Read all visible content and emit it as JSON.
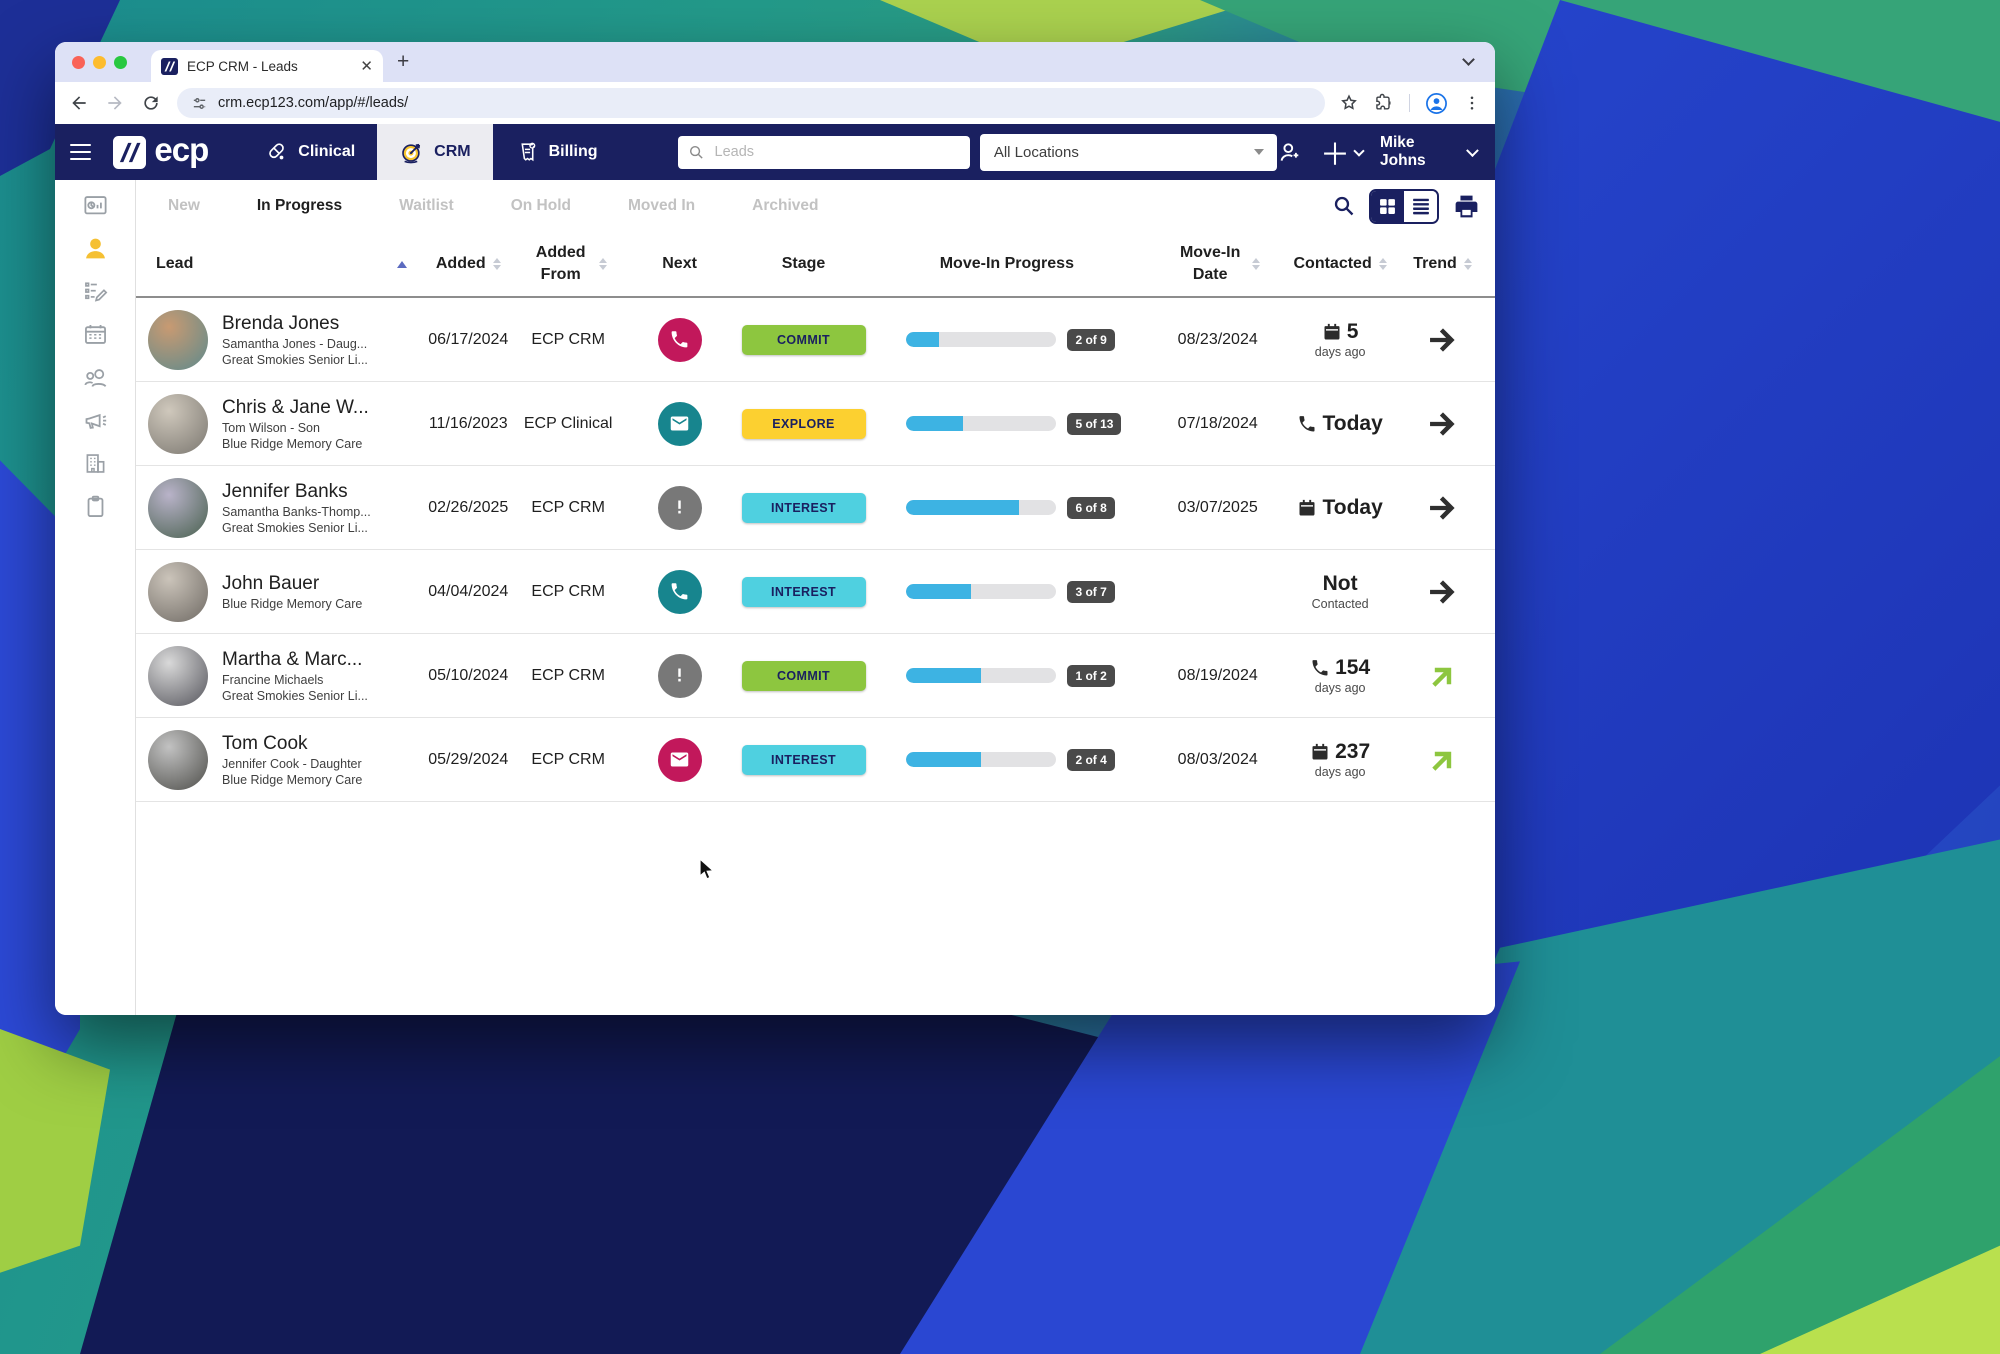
{
  "browser": {
    "tab_title": "ECP CRM - Leads",
    "url": "crm.ecp123.com/app/#/leads/"
  },
  "app_header": {
    "logo_text": "ecp",
    "nav": [
      {
        "label": "Clinical",
        "icon": "pill-icon",
        "active": false
      },
      {
        "label": "CRM",
        "icon": "target-icon",
        "active": true
      },
      {
        "label": "Billing",
        "icon": "billing-icon",
        "active": false
      }
    ],
    "search": {
      "placeholder": "Leads"
    },
    "location_filter": {
      "value": "All Locations"
    },
    "user_name": "Mike Johns"
  },
  "sidebar": {
    "items": [
      {
        "icon": "dashboard-icon",
        "active": false
      },
      {
        "icon": "leads-person-icon",
        "active": true
      },
      {
        "icon": "tasks-icon",
        "active": false
      },
      {
        "icon": "calendar-icon",
        "active": false
      },
      {
        "icon": "referrals-icon",
        "active": false
      },
      {
        "icon": "marketing-icon",
        "active": false
      },
      {
        "icon": "communities-icon",
        "active": false
      },
      {
        "icon": "clipboard-icon",
        "active": false
      }
    ]
  },
  "filter_tabs": [
    {
      "label": "New",
      "active": false
    },
    {
      "label": "In Progress",
      "active": true
    },
    {
      "label": "Waitlist",
      "active": false
    },
    {
      "label": "On Hold",
      "active": false
    },
    {
      "label": "Moved In",
      "active": false
    },
    {
      "label": "Archived",
      "active": false
    }
  ],
  "table": {
    "columns": [
      {
        "label": "Lead",
        "sort": "asc"
      },
      {
        "label": "Added",
        "sort": "both"
      },
      {
        "label": "Added From",
        "sort": "both"
      },
      {
        "label": "Next",
        "sort": "none"
      },
      {
        "label": "Stage",
        "sort": "none"
      },
      {
        "label": "Move-In Progress",
        "sort": "none"
      },
      {
        "label": "Move-In Date",
        "sort": "both"
      },
      {
        "label": "Contacted",
        "sort": "both"
      },
      {
        "label": "Trend",
        "sort": "both"
      }
    ],
    "rows": [
      {
        "name": "Brenda Jones",
        "contact": "Samantha Jones - Daug...",
        "community": "Great Smokies Senior Li...",
        "avatar": {
          "from": "#c89a72",
          "to": "#5e8a8c"
        },
        "added": "06/17/2024",
        "added_from": "ECP CRM",
        "next": {
          "icon": "phone-icon",
          "color": "#c2185b"
        },
        "stage": {
          "label": "COMMIT",
          "color": "#8dc63f"
        },
        "progress": {
          "label": "2 of 9",
          "percent": 22
        },
        "move_in_date": "08/23/2024",
        "contacted": {
          "icon": "calendar-small-icon",
          "value": "5",
          "sub": "days ago"
        },
        "trend": {
          "icon": "arrow-right-icon",
          "color": "#2f2f2f"
        }
      },
      {
        "name": "Chris & Jane W...",
        "contact": "Tom Wilson - Son",
        "community": "Blue Ridge Memory Care",
        "avatar": {
          "from": "#cfc8bc",
          "to": "#7b7770"
        },
        "added": "11/16/2023",
        "added_from": "ECP Clinical",
        "next": {
          "icon": "mail-icon",
          "color": "#17858e"
        },
        "stage": {
          "label": "EXPLORE",
          "color": "#fcd030"
        },
        "progress": {
          "label": "5 of 13",
          "percent": 38
        },
        "move_in_date": "07/18/2024",
        "contacted": {
          "icon": "phone-small-icon",
          "value": "Today",
          "sub": ""
        },
        "trend": {
          "icon": "arrow-right-icon",
          "color": "#2f2f2f"
        }
      },
      {
        "name": "Jennifer Banks",
        "contact": "Samantha Banks-Thomp...",
        "community": "Great Smokies Senior Li...",
        "avatar": {
          "from": "#b9b3c9",
          "to": "#48604e"
        },
        "added": "02/26/2025",
        "added_from": "ECP CRM",
        "next": {
          "icon": "alert-icon",
          "color": "#787878"
        },
        "stage": {
          "label": "INTEREST",
          "color": "#4fd0e0"
        },
        "progress": {
          "label": "6 of 8",
          "percent": 75
        },
        "move_in_date": "03/07/2025",
        "contacted": {
          "icon": "calendar-small-icon",
          "value": "Today",
          "sub": ""
        },
        "trend": {
          "icon": "arrow-right-icon",
          "color": "#2f2f2f"
        }
      },
      {
        "name": "John Bauer",
        "contact": null,
        "community": "Blue Ridge Memory Care",
        "avatar": {
          "from": "#cbc4ba",
          "to": "#6f6a64"
        },
        "added": "04/04/2024",
        "added_from": "ECP CRM",
        "next": {
          "icon": "phone-icon",
          "color": "#17858e"
        },
        "stage": {
          "label": "INTEREST",
          "color": "#4fd0e0"
        },
        "progress": {
          "label": "3 of 7",
          "percent": 43
        },
        "move_in_date": "",
        "contacted": {
          "icon": null,
          "value": "Not",
          "sub": "Contacted"
        },
        "trend": {
          "icon": "arrow-right-icon",
          "color": "#2f2f2f"
        }
      },
      {
        "name": "Martha & Marc...",
        "contact": "Francine Michaels",
        "community": "Great Smokies Senior Li...",
        "avatar": {
          "from": "#d9d9d9",
          "to": "#55555c"
        },
        "added": "05/10/2024",
        "added_from": "ECP CRM",
        "next": {
          "icon": "alert-icon",
          "color": "#787878"
        },
        "stage": {
          "label": "COMMIT",
          "color": "#8dc63f"
        },
        "progress": {
          "label": "1 of 2",
          "percent": 50
        },
        "move_in_date": "08/19/2024",
        "contacted": {
          "icon": "phone-small-icon",
          "value": "154",
          "sub": "days ago"
        },
        "trend": {
          "icon": "arrow-up-right-icon",
          "color": "#8dc63f"
        }
      },
      {
        "name": "Tom Cook",
        "contact": "Jennifer Cook - Daughter",
        "community": "Blue Ridge Memory Care",
        "avatar": {
          "from": "#c2c2c2",
          "to": "#4e4e4a"
        },
        "added": "05/29/2024",
        "added_from": "ECP CRM",
        "next": {
          "icon": "mail-icon",
          "color": "#c2185b"
        },
        "stage": {
          "label": "INTEREST",
          "color": "#4fd0e0"
        },
        "progress": {
          "label": "2 of 4",
          "percent": 50
        },
        "move_in_date": "08/03/2024",
        "contacted": {
          "icon": "calendar-small-icon",
          "value": "237",
          "sub": "days ago"
        },
        "trend": {
          "icon": "arrow-up-right-icon",
          "color": "#8dc63f"
        }
      }
    ]
  },
  "colors": {
    "navy": "#1a2060",
    "stage_commit": "#8dc63f",
    "stage_explore": "#fcd030",
    "stage_interest": "#4fd0e0",
    "progress_fill": "#3db3e3",
    "badge_bg": "#4a4a4a",
    "phone_crimson": "#c2185b",
    "mail_teal": "#17858e",
    "alert_grey": "#787878",
    "trend_up_green": "#8dc63f",
    "active_icon_yellow": "#f5c033"
  }
}
